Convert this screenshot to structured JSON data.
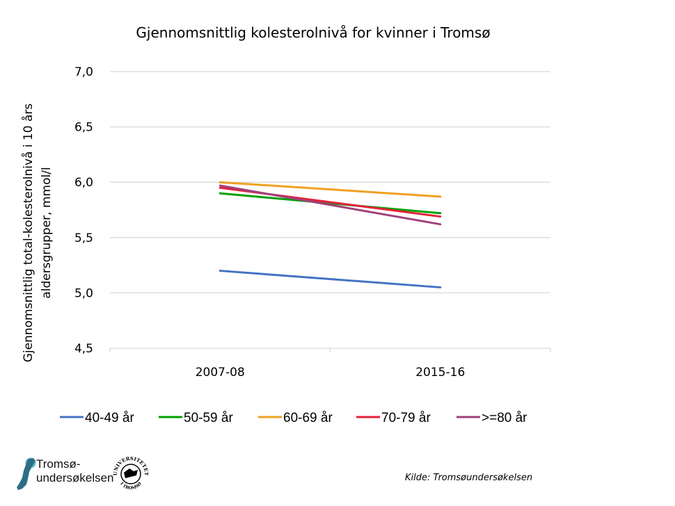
{
  "chart_data": {
    "type": "line",
    "title": "Gjennomsnittlig kolesterolnivå for kvinner i Tromsø",
    "xlabel": "",
    "ylabel_lines": [
      "Gjennomsnittlig total-kolesterolnivå  i 10 års",
      "aldersgrupper,  mmol/l"
    ],
    "categories": [
      "2007-08",
      "2015-16"
    ],
    "ylim": [
      4.5,
      7.0
    ],
    "yticks": [
      4.5,
      5.0,
      5.5,
      6.0,
      6.5,
      7.0
    ],
    "ytick_labels": [
      "4,5",
      "5,0",
      "5,5",
      "6,0",
      "6,5",
      "7,0"
    ],
    "grid": true,
    "legend_position": "bottom",
    "series": [
      {
        "name": "40-49 år",
        "color": "#4472C4",
        "values": [
          5.2,
          5.05
        ]
      },
      {
        "name": "50-59 år",
        "color": "#00A000",
        "values": [
          5.9,
          5.72
        ]
      },
      {
        "name": "60-69 år",
        "color": "#F0A020",
        "values": [
          6.0,
          5.87
        ]
      },
      {
        "name": "70-79 år",
        "color": "#E8203A",
        "values": [
          5.95,
          5.69
        ]
      },
      {
        "name": ">=80 år",
        "color": "#A0407A",
        "values": [
          5.97,
          5.62
        ]
      }
    ]
  },
  "footer": {
    "logo_line1": "Tromsø-",
    "logo_line2": "undersøkelsen",
    "source": "Kilde: Tromsøundersøkelsen",
    "seal_top": "UNIVERSITETET",
    "seal_bottom": "I TROMSØ"
  }
}
